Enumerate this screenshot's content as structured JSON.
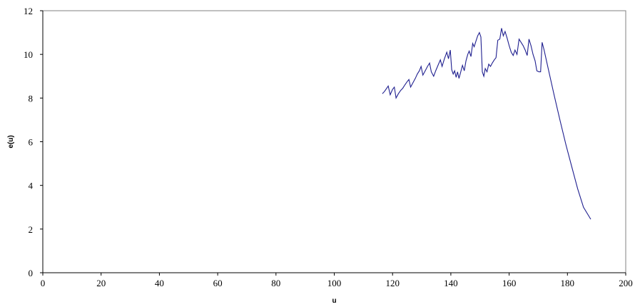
{
  "chart_data": {
    "type": "line",
    "title": "",
    "xlabel": "u",
    "ylabel": "e(u)",
    "xlim": [
      0,
      200
    ],
    "ylim": [
      0,
      12
    ],
    "x_ticks": [
      "0",
      "20",
      "40",
      "60",
      "80",
      "100",
      "120",
      "140",
      "160",
      "180",
      "200"
    ],
    "y_ticks": [
      "0",
      "2",
      "4",
      "6",
      "8",
      "10",
      "12"
    ],
    "grid": false,
    "legend": "none",
    "series": [
      {
        "color": "#1f1f8f",
        "points": [
          [
            116.5,
            8.2
          ],
          [
            117.2,
            8.3
          ],
          [
            118.0,
            8.45
          ],
          [
            118.5,
            8.55
          ],
          [
            119.2,
            8.15
          ],
          [
            120.0,
            8.4
          ],
          [
            120.6,
            8.5
          ],
          [
            121.2,
            8.0
          ],
          [
            122.0,
            8.2
          ],
          [
            122.8,
            8.35
          ],
          [
            123.5,
            8.45
          ],
          [
            124.2,
            8.6
          ],
          [
            125.0,
            8.75
          ],
          [
            125.6,
            8.85
          ],
          [
            126.2,
            8.5
          ],
          [
            127.0,
            8.7
          ],
          [
            127.8,
            8.9
          ],
          [
            128.5,
            9.1
          ],
          [
            129.2,
            9.25
          ],
          [
            129.8,
            9.45
          ],
          [
            130.4,
            9.05
          ],
          [
            131.2,
            9.25
          ],
          [
            132.0,
            9.45
          ],
          [
            132.7,
            9.6
          ],
          [
            133.3,
            9.2
          ],
          [
            134.1,
            9.0
          ],
          [
            134.8,
            9.25
          ],
          [
            135.6,
            9.5
          ],
          [
            136.4,
            9.75
          ],
          [
            137.0,
            9.45
          ],
          [
            137.8,
            9.8
          ],
          [
            138.6,
            10.1
          ],
          [
            139.2,
            9.8
          ],
          [
            139.8,
            10.2
          ],
          [
            140.3,
            9.3
          ],
          [
            140.8,
            9.1
          ],
          [
            141.3,
            9.25
          ],
          [
            141.8,
            8.95
          ],
          [
            142.3,
            9.2
          ],
          [
            142.8,
            8.9
          ],
          [
            143.4,
            9.2
          ],
          [
            144.0,
            9.5
          ],
          [
            144.6,
            9.25
          ],
          [
            145.2,
            9.7
          ],
          [
            145.8,
            10.0
          ],
          [
            146.3,
            10.15
          ],
          [
            146.9,
            9.9
          ],
          [
            147.5,
            10.5
          ],
          [
            148.0,
            10.35
          ],
          [
            148.6,
            10.6
          ],
          [
            149.2,
            10.85
          ],
          [
            149.8,
            11.0
          ],
          [
            150.3,
            10.8
          ],
          [
            150.8,
            9.2
          ],
          [
            151.3,
            9.0
          ],
          [
            151.8,
            9.35
          ],
          [
            152.4,
            9.2
          ],
          [
            153.0,
            9.55
          ],
          [
            153.6,
            9.45
          ],
          [
            154.2,
            9.6
          ],
          [
            154.9,
            9.75
          ],
          [
            155.5,
            9.85
          ],
          [
            156.1,
            10.65
          ],
          [
            156.8,
            10.7
          ],
          [
            157.4,
            11.2
          ],
          [
            158.0,
            10.85
          ],
          [
            158.6,
            11.05
          ],
          [
            159.3,
            10.75
          ],
          [
            160.0,
            10.4
          ],
          [
            160.7,
            10.1
          ],
          [
            161.4,
            9.95
          ],
          [
            162.0,
            10.2
          ],
          [
            162.7,
            10.0
          ],
          [
            163.4,
            10.7
          ],
          [
            164.1,
            10.55
          ],
          [
            164.8,
            10.4
          ],
          [
            165.5,
            10.2
          ],
          [
            166.2,
            9.95
          ],
          [
            166.8,
            10.7
          ],
          [
            167.5,
            10.4
          ],
          [
            168.2,
            10.0
          ],
          [
            168.9,
            9.7
          ],
          [
            169.5,
            9.25
          ],
          [
            170.2,
            9.2
          ],
          [
            170.8,
            9.2
          ],
          [
            171.3,
            10.55
          ],
          [
            172.0,
            10.2
          ],
          [
            173.5,
            9.3
          ],
          [
            175.5,
            8.1
          ],
          [
            177.5,
            6.95
          ],
          [
            179.5,
            5.85
          ],
          [
            181.5,
            4.85
          ],
          [
            183.5,
            3.85
          ],
          [
            185.5,
            3.0
          ],
          [
            188.0,
            2.45
          ]
        ]
      }
    ]
  }
}
